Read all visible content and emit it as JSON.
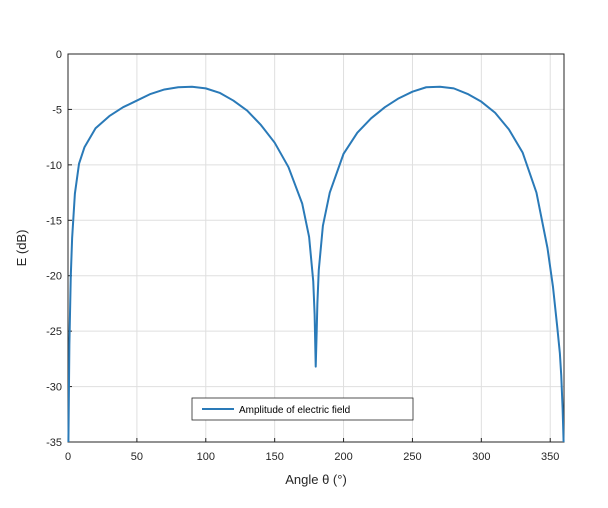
{
  "chart_data": {
    "type": "line",
    "xlabel": "Angle θ (°)",
    "ylabel": "E (dB)",
    "xlim": [
      0,
      360
    ],
    "ylim": [
      -35,
      0
    ],
    "xticks": [
      0,
      50,
      100,
      150,
      200,
      250,
      300,
      350
    ],
    "yticks": [
      0,
      -5,
      -10,
      -15,
      -20,
      -25,
      -30,
      -35
    ],
    "grid": true,
    "legend_position": "bottom-center",
    "series": [
      {
        "name": "Amplitude of electric field",
        "color": "#2a7ab8",
        "x": [
          0.3,
          1,
          2,
          3,
          5,
          8,
          12,
          20,
          30,
          40,
          50,
          60,
          70,
          80,
          90,
          100,
          110,
          120,
          130,
          140,
          150,
          160,
          170,
          175,
          178,
          179,
          179.8,
          180.5,
          181,
          182,
          185,
          190,
          200,
          210,
          220,
          230,
          240,
          250,
          260,
          270,
          280,
          290,
          300,
          310,
          320,
          330,
          340,
          348,
          352,
          355,
          357,
          358,
          359,
          359.7
        ],
        "values": [
          -35,
          -26.2,
          -20.1,
          -16.6,
          -12.6,
          -9.9,
          -8.4,
          -6.7,
          -5.6,
          -4.8,
          -4.2,
          -3.6,
          -3.2,
          -3.0,
          -2.95,
          -3.1,
          -3.5,
          -4.2,
          -5.1,
          -6.4,
          -8.0,
          -10.2,
          -13.5,
          -16.5,
          -20.5,
          -23.5,
          -28.2,
          -25.0,
          -22.5,
          -19.5,
          -15.5,
          -12.5,
          -9.0,
          -7.1,
          -5.8,
          -4.8,
          -4.0,
          -3.4,
          -3.0,
          -2.95,
          -3.1,
          -3.6,
          -4.3,
          -5.3,
          -6.8,
          -8.9,
          -12.5,
          -17.5,
          -21.0,
          -24.5,
          -27.0,
          -29.0,
          -32.0,
          -35.0
        ]
      }
    ]
  }
}
